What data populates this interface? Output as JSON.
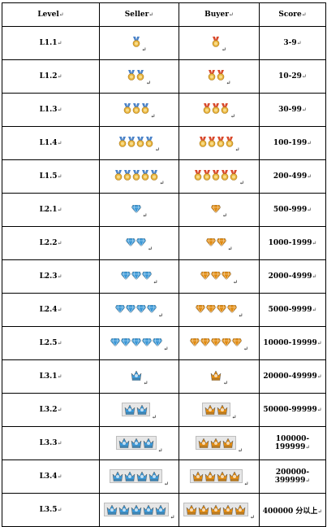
{
  "headers": {
    "level": "Level",
    "seller": "Seller",
    "buyer": "Buyer",
    "score": "Score"
  },
  "mark": "↵",
  "colors": {
    "seller_primary": "#3a97d6",
    "buyer_primary": "#e08a10",
    "medal_gold": "#e8b23a",
    "seller_ribbon": "#4a82c8",
    "buyer_ribbon": "#d9492c"
  },
  "rows": [
    {
      "level": "L1.1",
      "score": "3-9",
      "icon": "medal-icon",
      "count": 1
    },
    {
      "level": "L1.2",
      "score": "10-29",
      "icon": "medal-icon",
      "count": 2
    },
    {
      "level": "L1.3",
      "score": "30-99",
      "icon": "medal-icon",
      "count": 3
    },
    {
      "level": "L1.4",
      "score": "100-199",
      "icon": "medal-icon",
      "count": 4
    },
    {
      "level": "L1.5",
      "score": "200-499",
      "icon": "medal-icon",
      "count": 5
    },
    {
      "level": "L2.1",
      "score": "500-999",
      "icon": "diamond-icon",
      "count": 1
    },
    {
      "level": "L2.2",
      "score": "1000-1999",
      "icon": "diamond-icon",
      "count": 2
    },
    {
      "level": "L2.3",
      "score": "2000-4999",
      "icon": "diamond-icon",
      "count": 3
    },
    {
      "level": "L2.4",
      "score": "5000-9999",
      "icon": "diamond-icon",
      "count": 4
    },
    {
      "level": "L2.5",
      "score": "10000-19999",
      "icon": "diamond-icon",
      "count": 5
    },
    {
      "level": "L3.1",
      "score": "20000-49999",
      "icon": "crown-icon",
      "count": 1
    },
    {
      "level": "L3.2",
      "score": "50000-99999",
      "icon": "crown-icon",
      "count": 2
    },
    {
      "level": "L3.3",
      "score": "100000-199999",
      "icon": "crown-icon",
      "count": 3
    },
    {
      "level": "L3.4",
      "score": "200000-399999",
      "icon": "crown-icon",
      "count": 4
    },
    {
      "level": "L3.5",
      "score": "400000 分以上",
      "icon": "crown-icon",
      "count": 5
    }
  ]
}
